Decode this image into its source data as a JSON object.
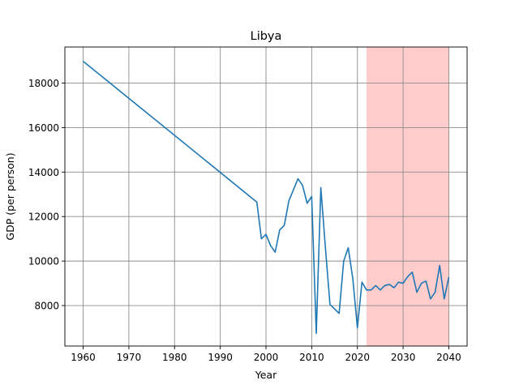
{
  "chart_data": {
    "type": "line",
    "title": "Libya",
    "xlabel": "Year",
    "ylabel": "GDP (per person)",
    "xlim": [
      1956,
      2044
    ],
    "ylim": [
      6180,
      19620
    ],
    "xticks": [
      1960,
      1970,
      1980,
      1990,
      2000,
      2010,
      2020,
      2030,
      2040
    ],
    "yticks": [
      8000,
      10000,
      12000,
      14000,
      16000,
      18000
    ],
    "grid": true,
    "line_color": "#1f77b4",
    "forecast_band": {
      "x_start": 2022,
      "x_end": 2040,
      "color": "#ffcccc"
    },
    "series": [
      {
        "x": [
          1960,
          1998,
          1999,
          2000,
          2001,
          2002,
          2003,
          2004,
          2005,
          2006,
          2007,
          2008,
          2009,
          2010,
          2011,
          2012,
          2013,
          2014,
          2015,
          2016,
          2017,
          2018,
          2019,
          2020,
          2021,
          2022,
          2023,
          2024,
          2025,
          2026,
          2027,
          2028,
          2029,
          2030,
          2031,
          2032,
          2033,
          2034,
          2035,
          2036,
          2037,
          2038,
          2039,
          2040
        ],
        "y": [
          18980,
          12650,
          11000,
          11200,
          10700,
          10400,
          11400,
          11600,
          12700,
          13200,
          13700,
          13400,
          12600,
          12900,
          6750,
          13300,
          10600,
          8050,
          7850,
          7650,
          10000,
          10600,
          9200,
          7000,
          9050,
          8700,
          8700,
          8900,
          8700,
          8900,
          8950,
          8800,
          9050,
          9000,
          9300,
          9500,
          8600,
          9000,
          9100,
          8300,
          8600,
          9800,
          8300,
          9280
        ]
      }
    ]
  }
}
